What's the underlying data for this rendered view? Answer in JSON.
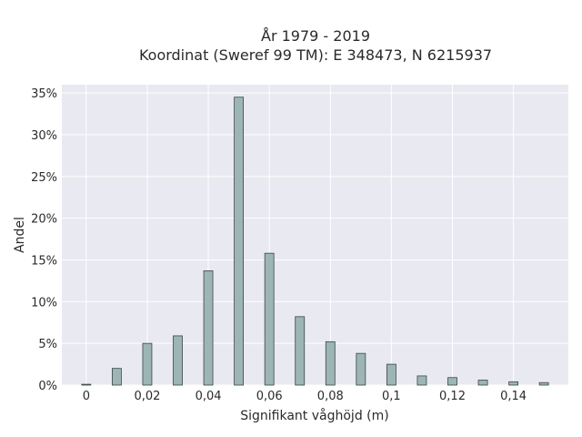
{
  "chart_data": {
    "type": "bar",
    "title_line1": "År 1979 - 2019",
    "title_line2": "Koordinat (Sweref 99 TM): E 348473, N 6215937",
    "xlabel": "Signifikant våghöjd (m)",
    "ylabel": "Andel",
    "x": [
      0,
      0.01,
      0.02,
      0.03,
      0.04,
      0.05,
      0.06,
      0.07,
      0.08,
      0.09,
      0.1,
      0.11,
      0.12,
      0.13,
      0.14,
      0.15
    ],
    "values": [
      0.1,
      2.0,
      5.0,
      5.9,
      13.7,
      34.5,
      15.8,
      8.2,
      5.2,
      3.8,
      2.5,
      1.1,
      0.9,
      0.6,
      0.4,
      0.3
    ],
    "xlim": [
      -0.008,
      0.158
    ],
    "ylim": [
      0,
      36
    ],
    "x_ticks": [
      0,
      0.02,
      0.04,
      0.06,
      0.08,
      0.1,
      0.12,
      0.14
    ],
    "x_tick_labels": [
      "0",
      "0,02",
      "0,04",
      "0,06",
      "0,08",
      "0,1",
      "0,12",
      "0,14"
    ],
    "y_ticks": [
      0,
      5,
      10,
      15,
      20,
      25,
      30,
      35
    ],
    "y_tick_labels": [
      "0%",
      "5%",
      "10%",
      "15%",
      "20%",
      "25%",
      "30%",
      "35%"
    ],
    "bar_color": "#9db5b5",
    "bar_edge_color": "#3a4646",
    "plot_background": "#e9e9f1",
    "grid": true,
    "grid_color": "#ffffff",
    "legend": "none"
  }
}
